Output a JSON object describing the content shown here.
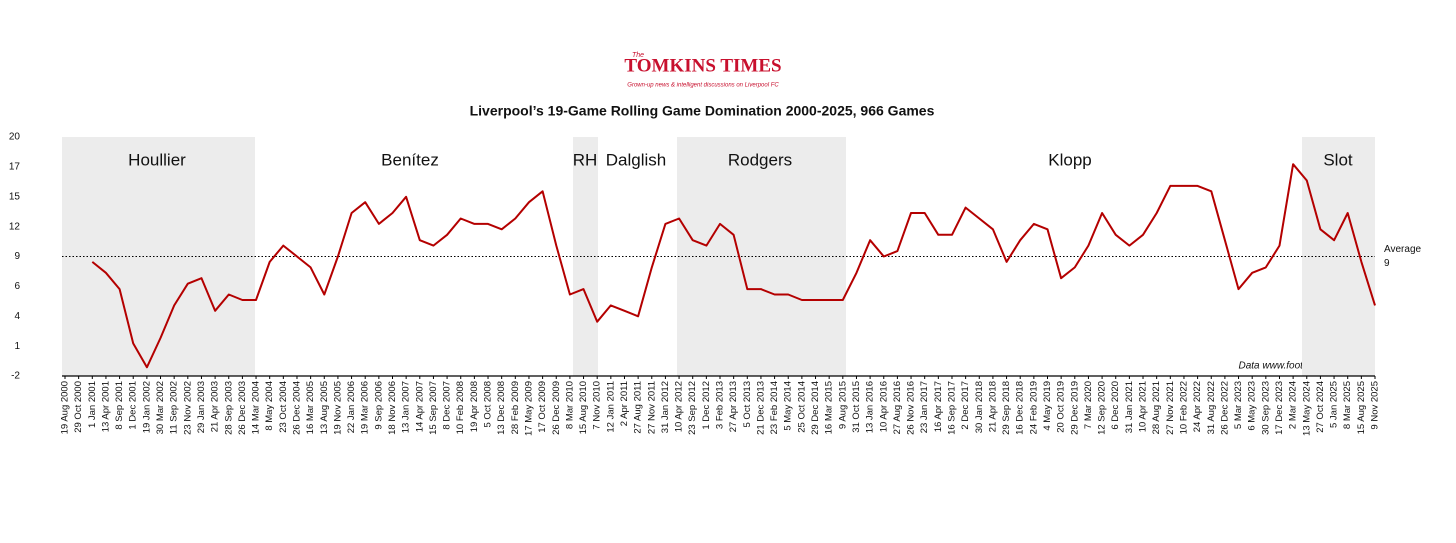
{
  "brand": {
    "prefix": "The",
    "name": "TOMKINS TIMES",
    "tagline": "Grown-up news & intelligent discussions on Liverpool FC"
  },
  "chart_data": {
    "type": "line",
    "title": "Liverpool’s 19-Game Rolling Game Domination 2000-2025, 966 Games",
    "source": "Data www.football-data.co.uk",
    "managers": [
      "Houllier",
      "Benítez",
      "RH",
      "Dalglish",
      "Rodgers",
      "Klopp",
      "Slot"
    ],
    "average": {
      "label": "Average",
      "value": 9
    },
    "categories": [
      "19 Aug 2000",
      "29 Oct 2000",
      "1 Jan 2001",
      "13 Apr 2001",
      "8 Sep 2001",
      "1 Dec 2001",
      "19 Jan 2002",
      "30 Mar 2002",
      "11 Sep 2002",
      "23 Nov 2002",
      "29 Jan 2003",
      "21 Apr 2003",
      "28 Sep 2003",
      "26 Dec 2003",
      "14 Mar 2004",
      "8 May 2004",
      "23 Oct 2004",
      "26 Dec 2004",
      "16 Mar 2005",
      "13 Aug 2005",
      "19 Nov 2005",
      "22 Jan 2006",
      "19 Mar 2006",
      "9 Sep 2006",
      "18 Nov 2006",
      "13 Jan 2007",
      "14 Apr 2007",
      "15 Sep 2007",
      "8 Dec 2007",
      "10 Feb 2008",
      "19 Apr 2008",
      "5 Oct 2008",
      "13 Dec 2008",
      "28 Feb 2009",
      "17 May 2009",
      "17 Oct 2009",
      "26 Dec 2009",
      "8 Mar 2010",
      "15 Aug 2010",
      "7 Nov 2010",
      "12 Jan 2011",
      "2 Apr 2011",
      "27 Aug 2011",
      "27 Nov 2011",
      "31 Jan 2012",
      "10 Apr 2012",
      "23 Sep 2012",
      "1 Dec 2012",
      "3 Feb 2013",
      "27 Apr 2013",
      "5 Oct 2013",
      "21 Dec 2013",
      "23 Feb 2014",
      "5 May 2014",
      "25 Oct 2014",
      "29 Dec 2014",
      "16 Mar 2015",
      "9 Aug 2015",
      "31 Oct 2015",
      "13 Jan 2016",
      "10 Apr 2016",
      "27 Aug 2016",
      "26 Nov 2016",
      "23 Jan 2017",
      "16 Apr 2017",
      "16 Sep 2017",
      "2 Dec 2017",
      "30 Jan 2018",
      "21 Apr 2018",
      "29 Sep 2018",
      "16 Dec 2018",
      "24 Feb 2019",
      "4 May 2019",
      "20 Oct 2019",
      "29 Dec 2019",
      "7 Mar 2020",
      "12 Sep 2020",
      "6 Dec 2020",
      "31 Jan 2021",
      "10 Apr 2021",
      "28 Aug 2021",
      "27 Nov 2021",
      "10 Feb 2022",
      "24 Apr 2022",
      "31 Aug 2022",
      "26 Dec 2022",
      "5 Mar 2023",
      "6 May 2023",
      "30 Sep 2023",
      "17 Dec 2023",
      "2 Mar 2024",
      "13 May 2024",
      "27 Oct 2024",
      "5 Jan 2025",
      "8 Mar 2025",
      "15 Aug 2025",
      "9 Nov 2025"
    ],
    "series": [
      {
        "name": "19-Game Rolling Game Domination",
        "color": "#b40000",
        "values": [
          null,
          null,
          8.5,
          7.5,
          6,
          1,
          -1.2,
          1.5,
          4.5,
          6.5,
          7,
          4,
          5.5,
          5,
          5,
          8.5,
          10,
          9,
          8,
          5.5,
          9,
          13,
          14,
          12,
          13,
          14.5,
          10.5,
          10,
          11,
          12.5,
          12,
          12,
          11.5,
          12.5,
          14,
          15,
          10,
          5.5,
          6,
          3,
          4.5,
          4,
          3.5,
          8,
          12,
          12.5,
          10.5,
          10,
          12,
          11,
          6,
          6,
          5.5,
          5.5,
          5,
          5,
          5,
          5,
          7.5,
          10.5,
          9,
          9.5,
          13,
          13,
          11,
          11,
          13.5,
          12.5,
          11.5,
          8.5,
          10.5,
          12,
          11.5,
          7,
          8,
          10,
          13,
          11,
          10,
          11,
          13,
          15.5,
          15.5,
          15.5,
          15,
          10.5,
          6,
          7.5,
          8,
          10,
          17.5,
          16,
          11.5,
          10.5,
          13,
          8.5,
          4.5
        ]
      }
    ],
    "ylim": [
      -2,
      20
    ],
    "yticks": [
      {
        "value": -2,
        "label": "-2"
      },
      {
        "value": 0.75,
        "label": "1"
      },
      {
        "value": 3.5,
        "label": "4"
      },
      {
        "value": 6.25,
        "label": "6"
      },
      {
        "value": 9,
        "label": "9"
      },
      {
        "value": 11.75,
        "label": "12"
      },
      {
        "value": 14.5,
        "label": "15"
      },
      {
        "value": 17.25,
        "label": "17"
      },
      {
        "value": 20,
        "label": "20"
      }
    ]
  }
}
